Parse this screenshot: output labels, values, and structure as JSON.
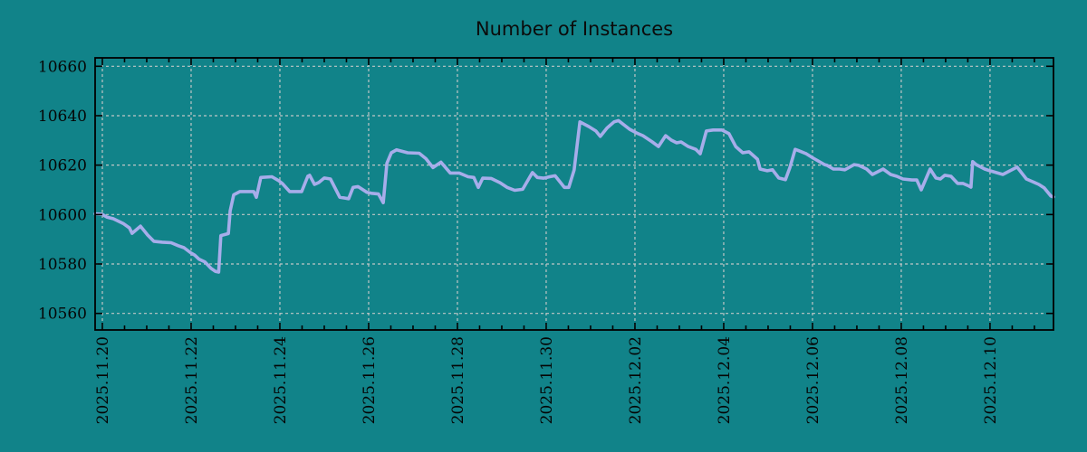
{
  "title": "Number of Instances",
  "colors": {
    "background": "#118389",
    "line": "#A7ADEA",
    "grid": "#C0C6C6",
    "axis": "#000000",
    "text": "#050505"
  },
  "chart_data": {
    "type": "line",
    "title": "Number of Instances",
    "xlabel": "",
    "ylabel": "",
    "x_unit": "days since 2025-11-20",
    "xlim_days": [
      -0.163,
      21.43
    ],
    "ylim": [
      10553.3,
      10663.4
    ],
    "y_ticks": [
      10560,
      10580,
      10600,
      10620,
      10640,
      10660
    ],
    "x_ticks_days": [
      0,
      2,
      4,
      6,
      8,
      10,
      12,
      14,
      16,
      18,
      20
    ],
    "x_tick_labels": [
      "2025.11.20",
      "2025.11.22",
      "2025.11.24",
      "2025.11.26",
      "2025.11.28",
      "2025.11.30",
      "2025.12.02",
      "2025.12.04",
      "2025.12.06",
      "2025.12.08",
      "2025.12.10"
    ],
    "minor_x_tick_interval_days": 0.5,
    "grid": true,
    "legend": "none",
    "series": [
      {
        "name": "instances",
        "points": [
          [
            -0.16,
            10600.3
          ],
          [
            0,
            10600.1
          ],
          [
            0.1,
            10599.0
          ],
          [
            0.25,
            10598.3
          ],
          [
            0.47,
            10596.4
          ],
          [
            0.61,
            10594.6
          ],
          [
            0.67,
            10592.4
          ],
          [
            0.86,
            10595.3
          ],
          [
            1.02,
            10591.7
          ],
          [
            1.16,
            10589.2
          ],
          [
            1.35,
            10588.8
          ],
          [
            1.55,
            10588.6
          ],
          [
            1.71,
            10587.4
          ],
          [
            1.84,
            10586.6
          ],
          [
            2.0,
            10584.4
          ],
          [
            2.08,
            10583.6
          ],
          [
            2.18,
            10581.9
          ],
          [
            2.31,
            10580.8
          ],
          [
            2.45,
            10578.2
          ],
          [
            2.55,
            10577.0
          ],
          [
            2.62,
            10576.7
          ],
          [
            2.67,
            10591.5
          ],
          [
            2.84,
            10592.3
          ],
          [
            2.88,
            10601.5
          ],
          [
            2.96,
            10608.0
          ],
          [
            3.1,
            10609.3
          ],
          [
            3.41,
            10609.3
          ],
          [
            3.47,
            10607.0
          ],
          [
            3.57,
            10615.0
          ],
          [
            3.82,
            10615.3
          ],
          [
            3.98,
            10613.6
          ],
          [
            4.06,
            10612.5
          ],
          [
            4.22,
            10609.3
          ],
          [
            4.49,
            10609.3
          ],
          [
            4.63,
            10615.5
          ],
          [
            4.67,
            10615.9
          ],
          [
            4.78,
            10612.2
          ],
          [
            4.88,
            10613.0
          ],
          [
            5.0,
            10614.8
          ],
          [
            5.14,
            10614.4
          ],
          [
            5.35,
            10607.0
          ],
          [
            5.55,
            10606.4
          ],
          [
            5.65,
            10611.0
          ],
          [
            5.76,
            10611.3
          ],
          [
            5.96,
            10609.0
          ],
          [
            6.06,
            10608.6
          ],
          [
            6.22,
            10608.3
          ],
          [
            6.33,
            10604.8
          ],
          [
            6.41,
            10620.7
          ],
          [
            6.51,
            10625.0
          ],
          [
            6.63,
            10626.2
          ],
          [
            6.88,
            10625.0
          ],
          [
            7.14,
            10624.8
          ],
          [
            7.29,
            10622.6
          ],
          [
            7.45,
            10619.0
          ],
          [
            7.63,
            10621.2
          ],
          [
            7.84,
            10616.8
          ],
          [
            8.04,
            10616.8
          ],
          [
            8.24,
            10615.3
          ],
          [
            8.37,
            10615.0
          ],
          [
            8.47,
            10611.0
          ],
          [
            8.57,
            10614.7
          ],
          [
            8.76,
            10614.6
          ],
          [
            8.96,
            10612.9
          ],
          [
            9.12,
            10611.0
          ],
          [
            9.29,
            10609.8
          ],
          [
            9.47,
            10610.2
          ],
          [
            9.67,
            10616.4
          ],
          [
            9.69,
            10617.0
          ],
          [
            9.8,
            10615.0
          ],
          [
            9.94,
            10614.7
          ],
          [
            10.08,
            10615.3
          ],
          [
            10.2,
            10615.7
          ],
          [
            10.41,
            10611.0
          ],
          [
            10.51,
            10611.0
          ],
          [
            10.63,
            10618.0
          ],
          [
            10.76,
            10637.5
          ],
          [
            10.96,
            10635.6
          ],
          [
            11.12,
            10633.8
          ],
          [
            11.22,
            10631.6
          ],
          [
            11.37,
            10635.0
          ],
          [
            11.53,
            10637.5
          ],
          [
            11.63,
            10638.0
          ],
          [
            11.88,
            10634.5
          ],
          [
            12.04,
            10633.0
          ],
          [
            12.18,
            10631.9
          ],
          [
            12.39,
            10629.4
          ],
          [
            12.53,
            10627.5
          ],
          [
            12.69,
            10631.9
          ],
          [
            12.82,
            10630.1
          ],
          [
            12.94,
            10629.0
          ],
          [
            13.04,
            10629.4
          ],
          [
            13.2,
            10627.5
          ],
          [
            13.37,
            10626.4
          ],
          [
            13.47,
            10624.6
          ],
          [
            13.61,
            10633.8
          ],
          [
            13.76,
            10634.2
          ],
          [
            13.96,
            10634.2
          ],
          [
            14.12,
            10632.7
          ],
          [
            14.27,
            10627.5
          ],
          [
            14.43,
            10625.0
          ],
          [
            14.57,
            10625.4
          ],
          [
            14.76,
            10622.4
          ],
          [
            14.82,
            10618.4
          ],
          [
            14.98,
            10617.7
          ],
          [
            15.1,
            10618.1
          ],
          [
            15.24,
            10614.8
          ],
          [
            15.39,
            10614.1
          ],
          [
            15.49,
            10619.0
          ],
          [
            15.61,
            10626.4
          ],
          [
            15.71,
            10625.7
          ],
          [
            15.86,
            10624.6
          ],
          [
            16.02,
            10622.8
          ],
          [
            16.27,
            10620.2
          ],
          [
            16.33,
            10619.9
          ],
          [
            16.47,
            10618.4
          ],
          [
            16.61,
            10618.4
          ],
          [
            16.73,
            10618.1
          ],
          [
            16.94,
            10620.2
          ],
          [
            17.04,
            10619.9
          ],
          [
            17.22,
            10618.4
          ],
          [
            17.35,
            10616.2
          ],
          [
            17.59,
            10618.4
          ],
          [
            17.76,
            10616.2
          ],
          [
            17.9,
            10615.5
          ],
          [
            18.04,
            10614.4
          ],
          [
            18.24,
            10614.0
          ],
          [
            18.35,
            10614.0
          ],
          [
            18.45,
            10610.0
          ],
          [
            18.65,
            10618.4
          ],
          [
            18.78,
            10614.8
          ],
          [
            18.88,
            10614.4
          ],
          [
            18.98,
            10615.9
          ],
          [
            19.12,
            10615.5
          ],
          [
            19.27,
            10612.6
          ],
          [
            19.39,
            10612.6
          ],
          [
            19.53,
            10611.5
          ],
          [
            19.57,
            10611.1
          ],
          [
            19.61,
            10621.4
          ],
          [
            19.69,
            10620.2
          ],
          [
            19.88,
            10618.4
          ],
          [
            20.0,
            10617.7
          ],
          [
            20.14,
            10617.0
          ],
          [
            20.29,
            10616.2
          ],
          [
            20.61,
            10619.2
          ],
          [
            20.82,
            10614.4
          ],
          [
            20.96,
            10613.3
          ],
          [
            21.1,
            10612.2
          ],
          [
            21.22,
            10610.8
          ],
          [
            21.37,
            10607.5
          ],
          [
            21.43,
            10607.1
          ]
        ]
      }
    ]
  }
}
